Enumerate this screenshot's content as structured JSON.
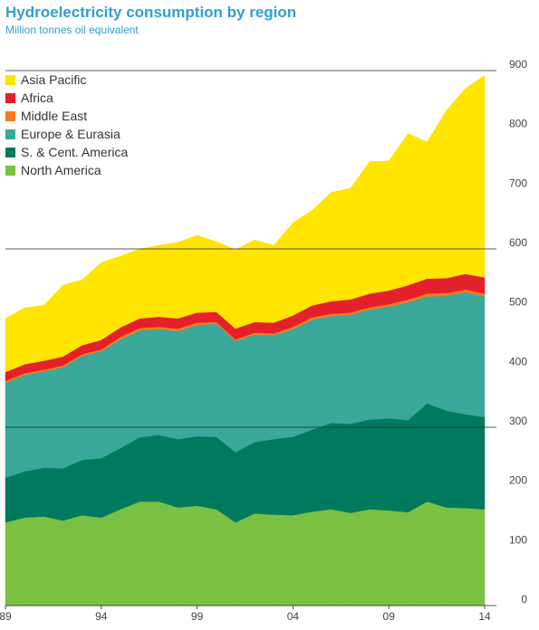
{
  "header": {
    "title": "Hydroelectricity consumption by region",
    "subtitle": "Million tonnes oil equivalent"
  },
  "chart_data": {
    "type": "area",
    "stacked": true,
    "title": "Hydroelectricity consumption by region",
    "subtitle": "Million tonnes oil equivalent",
    "x": [
      1989,
      1990,
      1991,
      1992,
      1993,
      1994,
      1995,
      1996,
      1997,
      1998,
      1999,
      2000,
      2001,
      2002,
      2003,
      2004,
      2005,
      2006,
      2007,
      2008,
      2009,
      2010,
      2011,
      2012,
      2013,
      2014
    ],
    "x_tick_labels": [
      "89",
      "94",
      "99",
      "04",
      "09",
      "14"
    ],
    "y_tick_labels": [
      "0",
      "100",
      "200",
      "300",
      "400",
      "500",
      "600",
      "700",
      "800",
      "900"
    ],
    "ylim": [
      0,
      900
    ],
    "y_axis_side": "right",
    "grid": "horizontal lines at 300, 600, 900",
    "legend_position": "top-left",
    "series": [
      {
        "name": "North America",
        "color": "#7ac143",
        "values": [
          140,
          148,
          150,
          143,
          152,
          148,
          162,
          175,
          175,
          165,
          168,
          162,
          140,
          155,
          153,
          152,
          158,
          162,
          156,
          162,
          160,
          157,
          175,
          165,
          164,
          162
        ]
      },
      {
        "name": "S. & Cent. America",
        "color": "#007a5e",
        "values": [
          75,
          78,
          82,
          88,
          93,
          100,
          103,
          108,
          112,
          115,
          117,
          122,
          118,
          120,
          127,
          132,
          138,
          145,
          150,
          151,
          155,
          155,
          165,
          163,
          158,
          155
        ]
      },
      {
        "name": "Europe & Eurasia",
        "color": "#3aa89a",
        "values": [
          160,
          162,
          162,
          170,
          175,
          180,
          183,
          180,
          178,
          182,
          187,
          190,
          187,
          181,
          175,
          181,
          185,
          180,
          183,
          185,
          188,
          198,
          180,
          193,
          205,
          203
        ]
      },
      {
        "name": "Middle East",
        "color": "#f47b20",
        "values": [
          3,
          3,
          3,
          3,
          3,
          3,
          4,
          4,
          4,
          4,
          4,
          3,
          3,
          3,
          3,
          4,
          4,
          4,
          4,
          4,
          4,
          5,
          5,
          5,
          5,
          5
        ]
      },
      {
        "name": "Africa",
        "color": "#e4202a",
        "values": [
          15,
          15,
          15,
          15,
          15,
          16,
          16,
          16,
          17,
          17,
          17,
          17,
          18,
          18,
          18,
          19,
          20,
          21,
          22,
          23,
          23,
          24,
          25,
          25,
          26,
          27
        ]
      },
      {
        "name": "Asia Pacific",
        "color": "#ffe500",
        "values": [
          90,
          95,
          93,
          120,
          110,
          130,
          120,
          117,
          120,
          128,
          130,
          118,
          133,
          138,
          130,
          156,
          160,
          183,
          187,
          222,
          218,
          255,
          230,
          282,
          312,
          340
        ]
      }
    ]
  },
  "legend": {
    "items": [
      {
        "label": "Asia Pacific",
        "color": "#ffe500"
      },
      {
        "label": "Africa",
        "color": "#e4202a"
      },
      {
        "label": "Middle East",
        "color": "#f47b20"
      },
      {
        "label": "Europe & Eurasia",
        "color": "#3aa89a"
      },
      {
        "label": "S. & Cent. America",
        "color": "#007a5e"
      },
      {
        "label": "North America",
        "color": "#7ac143"
      }
    ]
  }
}
